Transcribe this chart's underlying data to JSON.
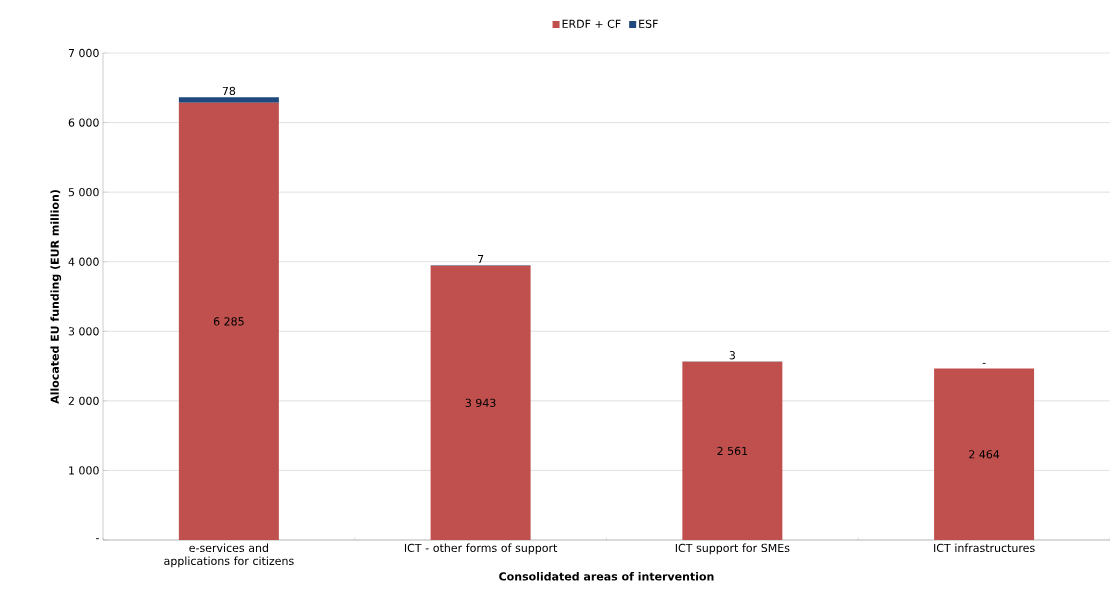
{
  "chart_data": {
    "type": "bar",
    "stacked": true,
    "xlabel": "Consolidated areas of intervention",
    "ylabel": "Allocated EU funding (EUR million)",
    "categories": [
      "e-services and applications for citizens",
      "ICT - other forms of support",
      "ICT support for SMEs",
      "ICT infrastructures"
    ],
    "series": [
      {
        "name": "ERDF + CF",
        "color": "#c0504d",
        "values": [
          6285,
          3943,
          2561,
          2464
        ],
        "value_labels": [
          "6 285",
          "3 943",
          "2 561",
          "2 464"
        ]
      },
      {
        "name": "ESF",
        "color": "#1f497d",
        "values": [
          78,
          7,
          3,
          0
        ],
        "value_labels": [
          "78",
          "7",
          "3",
          "-"
        ]
      }
    ],
    "ylim": [
      0,
      7000
    ],
    "yticks": [
      {
        "value": 0,
        "label": "-"
      },
      {
        "value": 1000,
        "label": "1 000"
      },
      {
        "value": 2000,
        "label": "2 000"
      },
      {
        "value": 3000,
        "label": "3 000"
      },
      {
        "value": 4000,
        "label": "4 000"
      },
      {
        "value": 5000,
        "label": "5 000"
      },
      {
        "value": 6000,
        "label": "6 000"
      },
      {
        "value": 7000,
        "label": "7 000"
      }
    ],
    "grid": "y",
    "legend": "top"
  }
}
